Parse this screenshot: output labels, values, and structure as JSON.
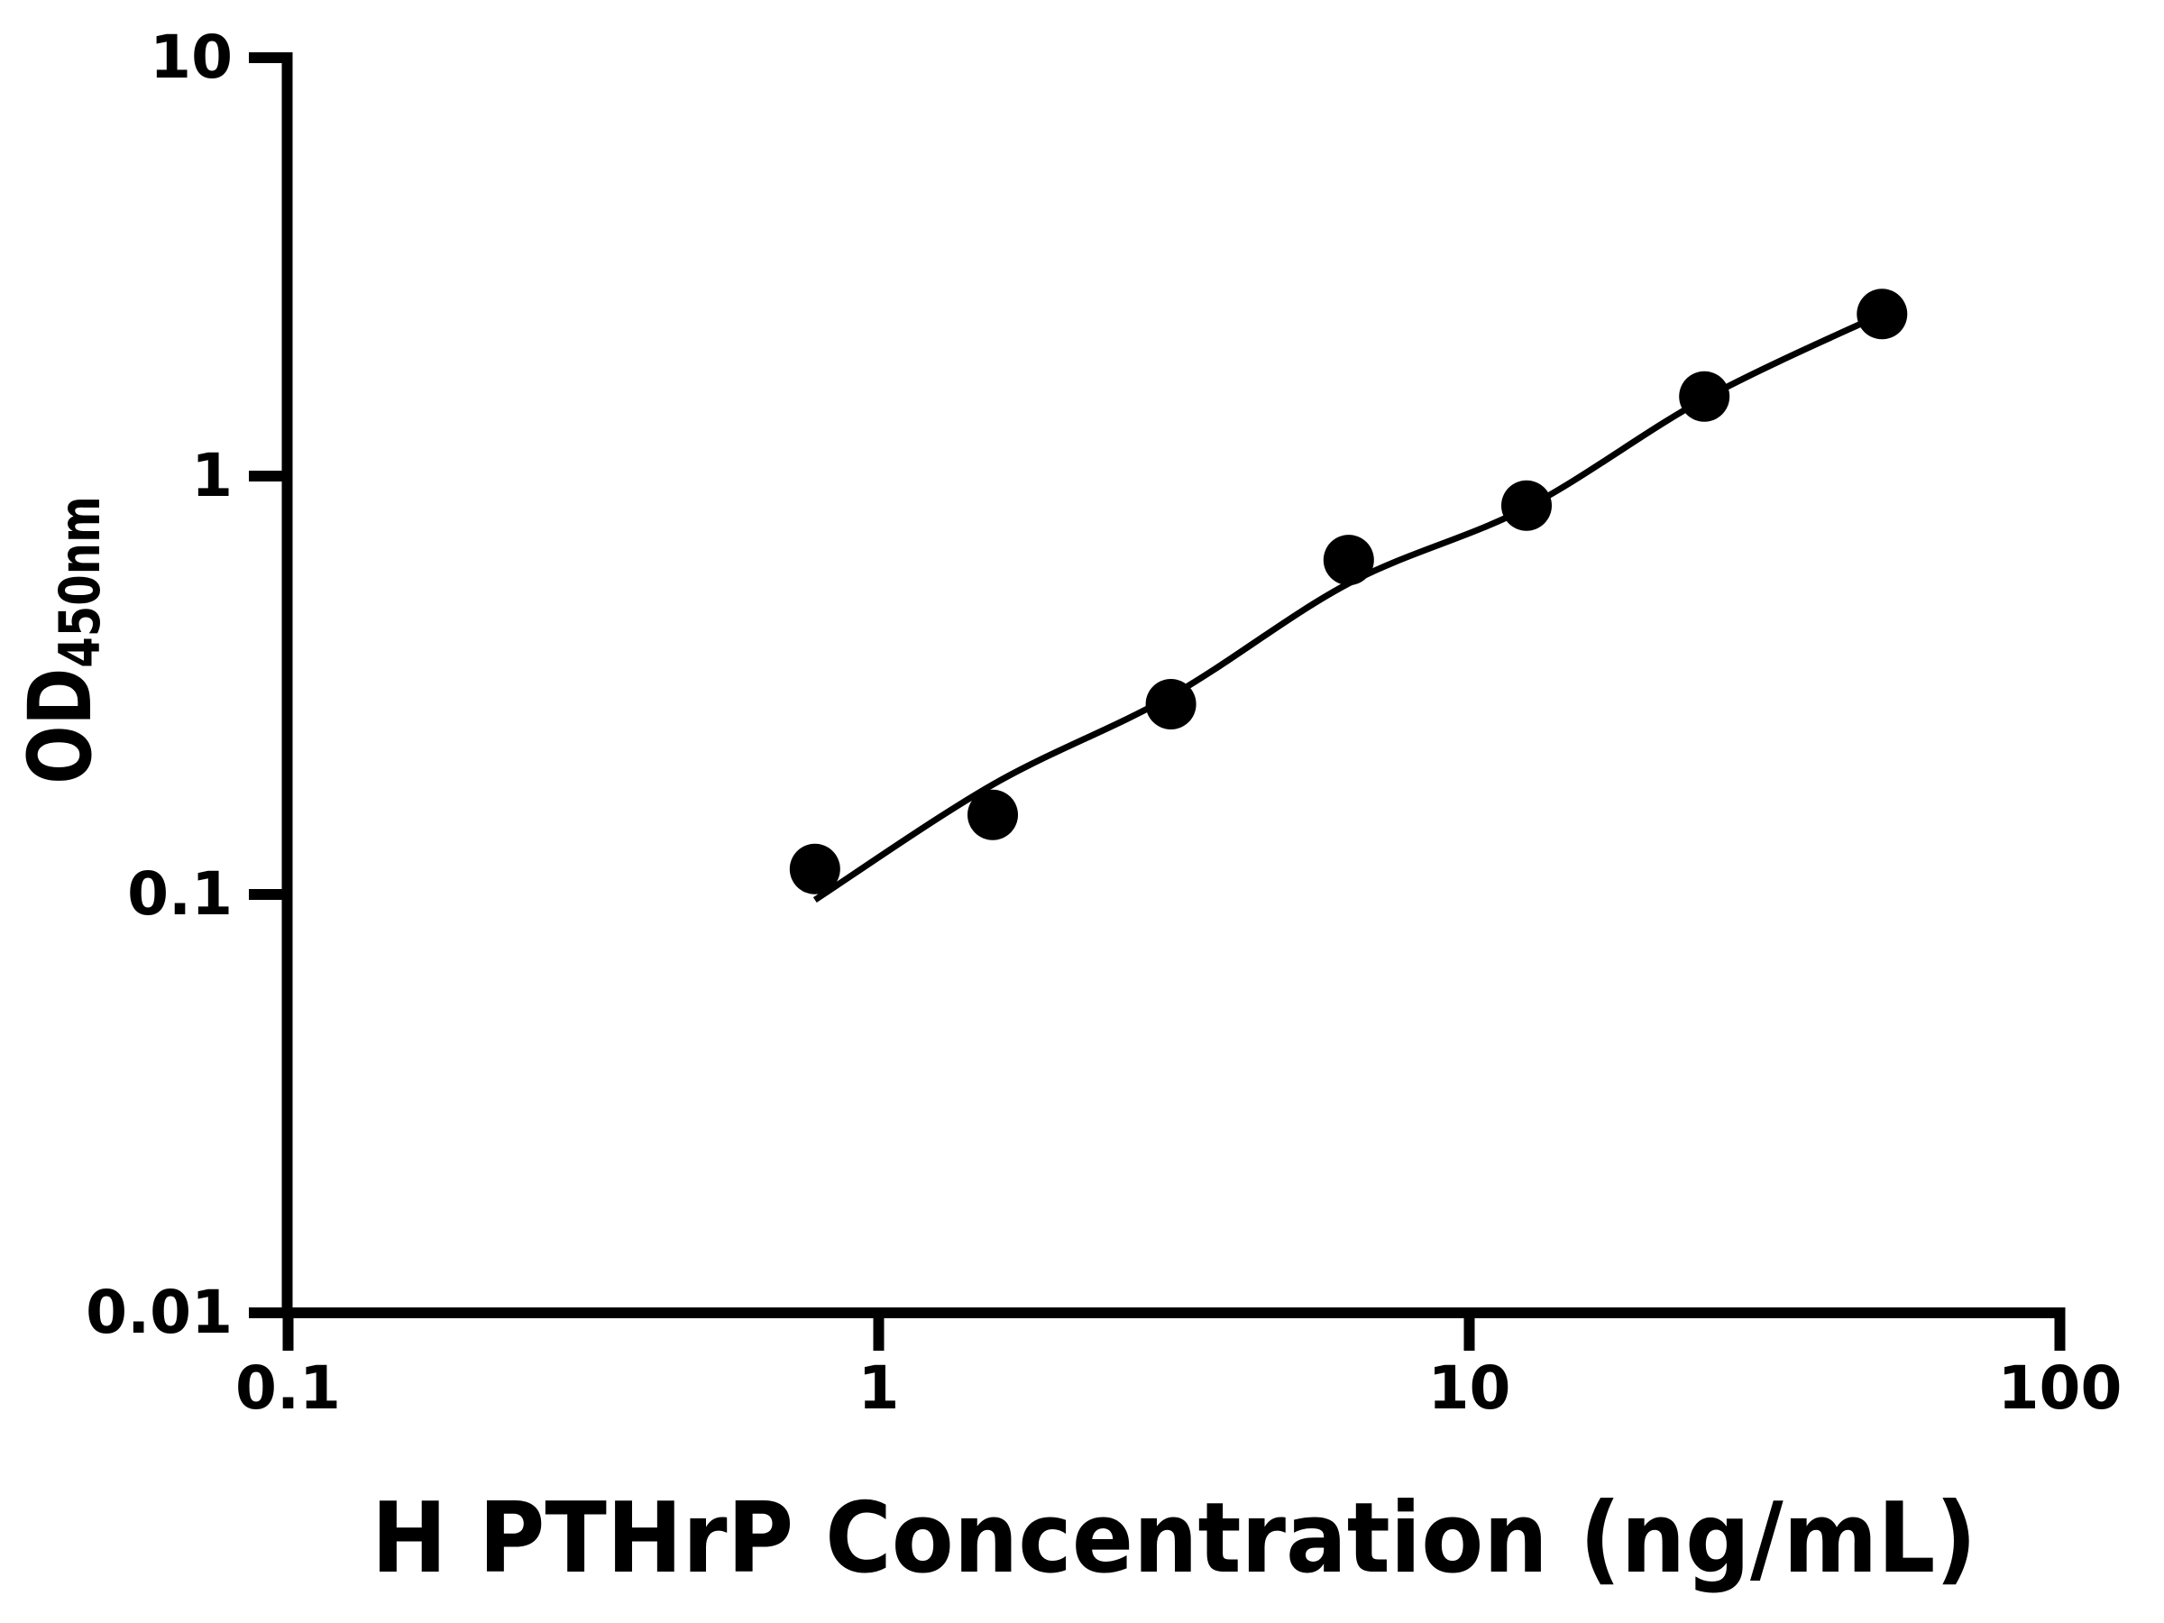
{
  "figure": {
    "background_color": "#ffffff",
    "ink_color": "#000000"
  },
  "chart_data": {
    "type": "scatter",
    "title": "",
    "xlabel": "H PTHrP Concentration (ng/mL)",
    "ylabel_main": "OD",
    "ylabel_sub": "450nm",
    "x_scale": "log",
    "y_scale": "log",
    "xlim": [
      0.1,
      100
    ],
    "ylim": [
      0.01,
      10
    ],
    "grid": false,
    "legend": null,
    "x_ticks": {
      "values": [
        0.1,
        1,
        10,
        100
      ],
      "labels": [
        "0.1",
        "1",
        "10",
        "100"
      ]
    },
    "y_ticks": {
      "values": [
        0.01,
        0.1,
        1,
        10
      ],
      "labels": [
        "0.01",
        "0.1",
        "1",
        "10"
      ]
    },
    "series": [
      {
        "name": "standard-curve-points",
        "marker": "circle",
        "color": "#000000",
        "x": [
          0.78,
          1.56,
          3.125,
          6.25,
          12.5,
          25,
          50
        ],
        "y": [
          0.115,
          0.155,
          0.285,
          0.63,
          0.85,
          1.55,
          2.44
        ]
      }
    ],
    "trend_line": {
      "name": "fitted-curve",
      "color": "#000000",
      "x": [
        0.78,
        1.56,
        3.125,
        6.25,
        12.5,
        25,
        50
      ],
      "y": [
        0.097,
        0.183,
        0.298,
        0.554,
        0.84,
        1.53,
        2.44
      ]
    }
  }
}
